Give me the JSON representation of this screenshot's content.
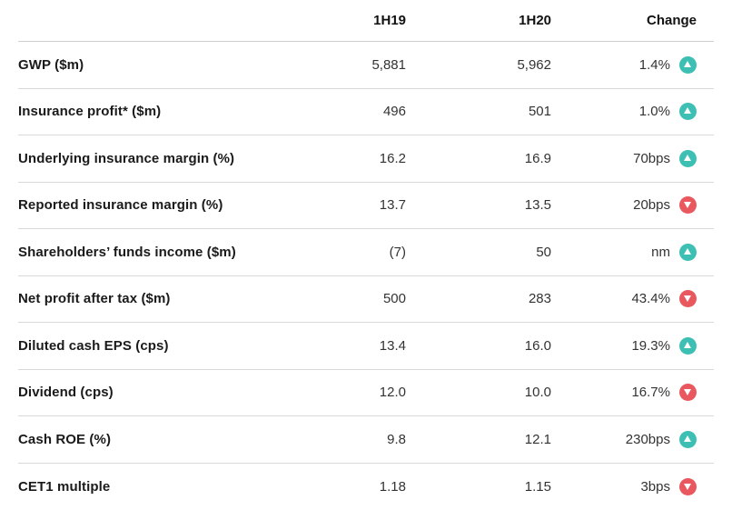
{
  "header": {
    "col_1h19": "1H19",
    "col_1h20": "1H20",
    "col_change": "Change"
  },
  "rows": [
    {
      "label": "GWP ($m)",
      "v1h19": "5,881",
      "v1h20": "5,962",
      "change": "1.4%",
      "direction": "up",
      "icon": "triangle-up-icon"
    },
    {
      "label": "Insurance profit* ($m)",
      "v1h19": "496",
      "v1h20": "501",
      "change": "1.0%",
      "direction": "up",
      "icon": "triangle-up-icon"
    },
    {
      "label": "Underlying insurance margin (%)",
      "v1h19": "16.2",
      "v1h20": "16.9",
      "change": "70bps",
      "direction": "up",
      "icon": "triangle-up-icon"
    },
    {
      "label": "Reported insurance margin (%)",
      "v1h19": "13.7",
      "v1h20": "13.5",
      "change": "20bps",
      "direction": "down",
      "icon": "triangle-down-icon"
    },
    {
      "label": "Shareholders’ funds income ($m)",
      "v1h19": "(7)",
      "v1h20": "50",
      "change": "nm",
      "direction": "up",
      "icon": "triangle-up-icon"
    },
    {
      "label": "Net profit after tax ($m)",
      "v1h19": "500",
      "v1h20": "283",
      "change": "43.4%",
      "direction": "down",
      "icon": "triangle-down-icon"
    },
    {
      "label": "Diluted cash EPS (cps)",
      "v1h19": "13.4",
      "v1h20": "16.0",
      "change": "19.3%",
      "direction": "up",
      "icon": "triangle-up-icon"
    },
    {
      "label": "Dividend (cps)",
      "v1h19": "12.0",
      "v1h20": "10.0",
      "change": "16.7%",
      "direction": "down",
      "icon": "triangle-down-icon"
    },
    {
      "label": "Cash ROE (%)",
      "v1h19": "9.8",
      "v1h20": "12.1",
      "change": "230bps",
      "direction": "up",
      "icon": "triangle-up-icon"
    },
    {
      "label": "CET1 multiple",
      "v1h19": "1.18",
      "v1h20": "1.15",
      "change": "3bps",
      "direction": "down",
      "icon": "triangle-down-icon"
    }
  ],
  "colors": {
    "up": "#3dbfb4",
    "down": "#e8585e"
  }
}
